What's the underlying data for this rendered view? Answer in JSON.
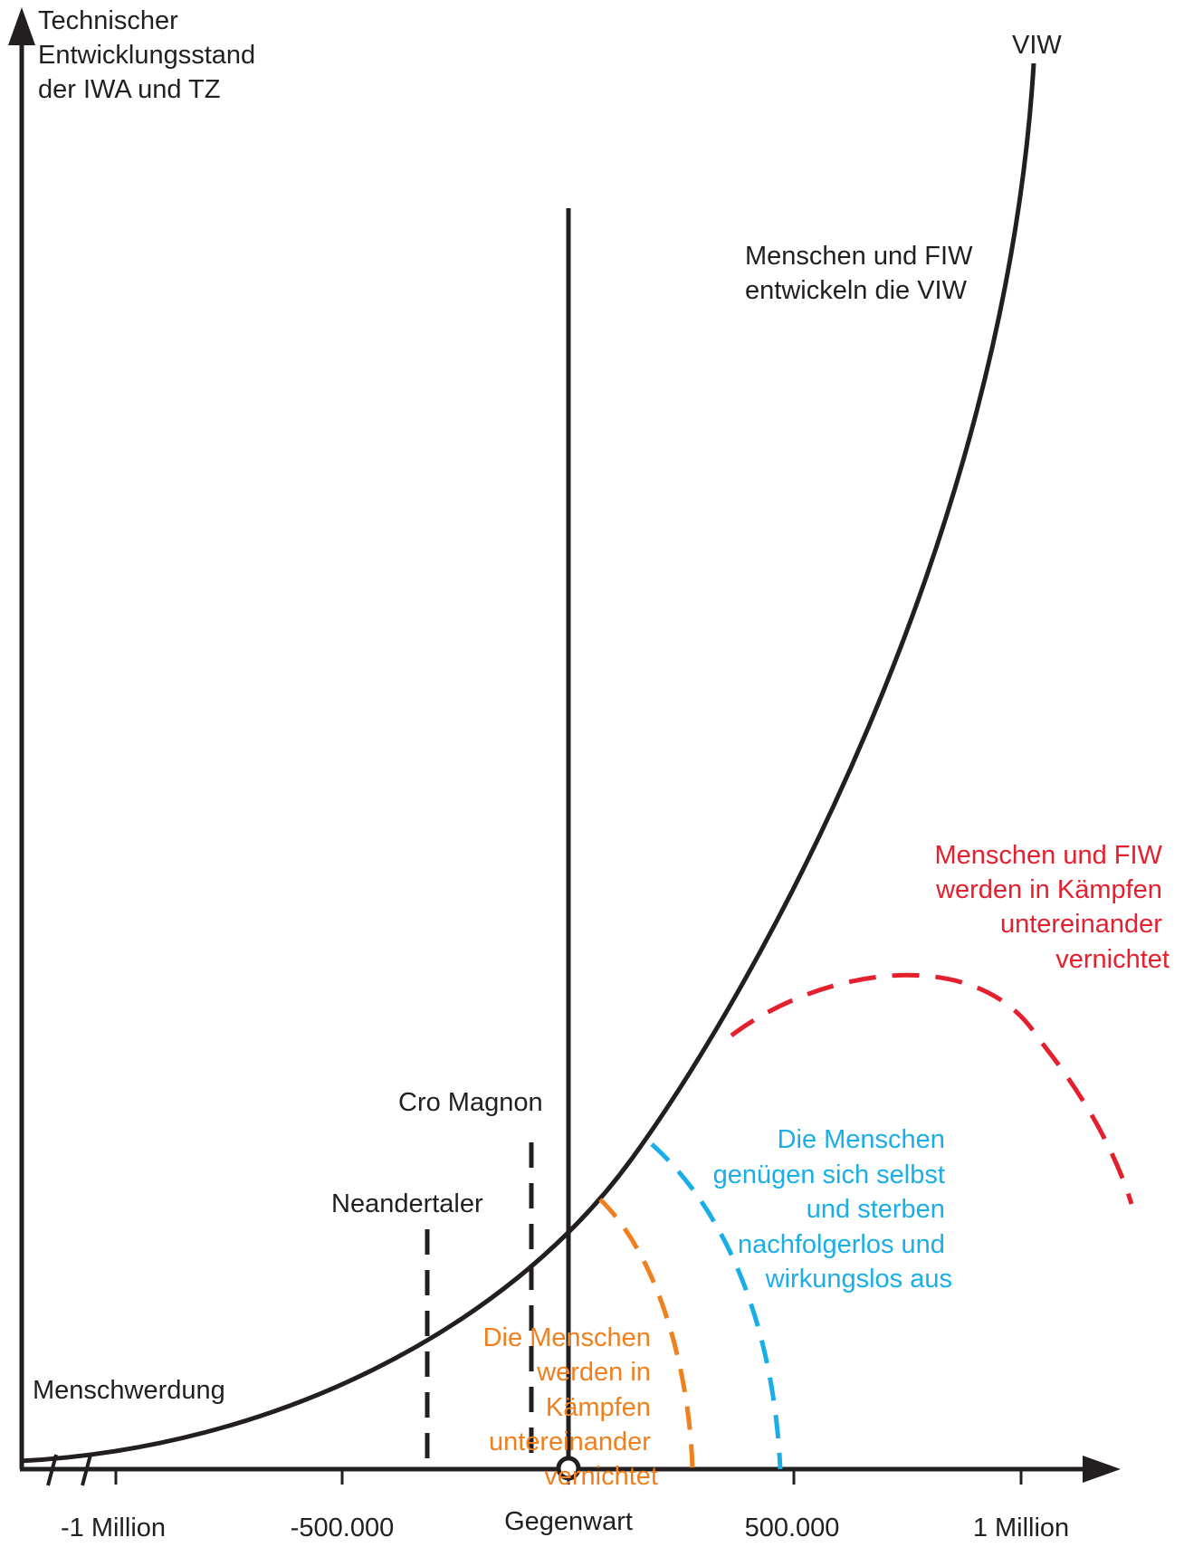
{
  "colors": {
    "axis": "#231f20",
    "red": "#e5202e",
    "blue": "#1aaee8",
    "orange": "#f07f1e"
  },
  "y_axis": {
    "title_lines": [
      "Technischer",
      "Entwicklungsstand",
      "der IWA und TZ"
    ]
  },
  "x_axis": {
    "ticks": [
      "-1 Million",
      "-500.000",
      "Gegenwart",
      "500.000",
      "1 Million"
    ]
  },
  "labels": {
    "viw": "VIW",
    "develop": [
      "Menschen und FIW",
      "entwickeln die VIW"
    ],
    "menschwerdung": "Menschwerdung",
    "neandertaler": "Neandertaler",
    "cro_magnon": "Cro Magnon",
    "orange_scenario": [
      "Die Menschen",
      "werden in",
      "Kämpfen",
      "untereinander",
      "vernichtet"
    ],
    "blue_scenario": [
      "Die Menschen",
      "genügen sich selbst",
      "und sterben",
      "nachfolgerlos und",
      "wirkungslos aus"
    ],
    "red_scenario": [
      "Menschen und FIW",
      "werden in Kämpfen",
      "untereinander",
      "vernichtet"
    ]
  }
}
